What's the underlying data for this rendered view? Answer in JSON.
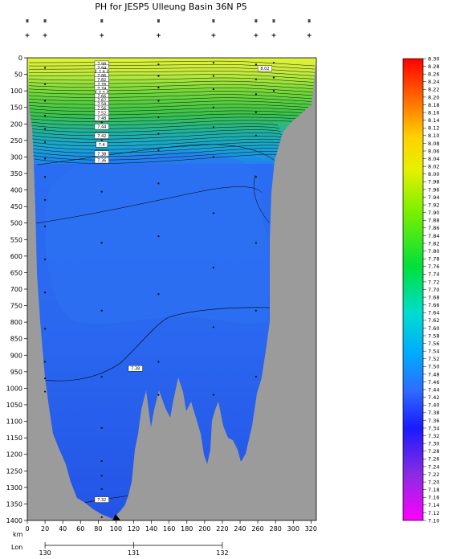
{
  "chart_data": {
    "type": "heatmap",
    "title": "PH for JESP5 Ulleung Basin 36N P5",
    "x_axis": {
      "label": "km",
      "ticks": [
        0,
        20,
        40,
        60,
        80,
        100,
        120,
        140,
        160,
        180,
        200,
        220,
        240,
        260,
        280,
        300,
        320
      ],
      "range": [
        0,
        326
      ]
    },
    "y_axis": {
      "ticks": [
        0,
        50,
        100,
        150,
        200,
        250,
        300,
        350,
        400,
        450,
        500,
        550,
        600,
        650,
        700,
        750,
        800,
        850,
        900,
        950,
        1000,
        1050,
        1100,
        1150,
        1200,
        1250,
        1300,
        1350,
        1400
      ],
      "range": [
        0,
        1400
      ],
      "inverted": true
    },
    "lon_axis": {
      "label": "Lon",
      "ticks": [
        {
          "lon": "130",
          "km": 20
        },
        {
          "lon": "131",
          "km": 120
        },
        {
          "lon": "132",
          "km": 220
        }
      ]
    },
    "colorbar": {
      "ticks": [
        "8.30",
        "8.28",
        "8.26",
        "8.24",
        "8.22",
        "8.20",
        "8.18",
        "8.16",
        "8.14",
        "8.12",
        "8.10",
        "8.08",
        "8.06",
        "8.04",
        "8.02",
        "8.00",
        "7.98",
        "7.96",
        "7.94",
        "7.92",
        "7.90",
        "7.88",
        "7.86",
        "7.84",
        "7.82",
        "7.80",
        "7.78",
        "7.76",
        "7.74",
        "7.72",
        "7.70",
        "7.68",
        "7.66",
        "7.64",
        "7.62",
        "7.60",
        "7.58",
        "7.56",
        "7.54",
        "7.52",
        "7.50",
        "7.48",
        "7.46",
        "7.44",
        "7.42",
        "7.40",
        "7.38",
        "7.36",
        "7.34",
        "7.32",
        "7.30",
        "7.28",
        "7.26",
        "7.24",
        "7.22",
        "7.20",
        "7.18",
        "7.16",
        "7.14",
        "7.12",
        "7.10"
      ],
      "range": [
        7.1,
        8.3
      ]
    },
    "station_km": [
      0,
      20,
      84,
      148,
      210,
      258,
      278,
      318
    ],
    "samples": [
      {
        "km": 20,
        "depths": [
          30,
          80,
          130,
          175,
          215,
          255,
          305,
          360,
          430,
          510,
          610,
          710,
          820,
          920,
          970,
          1010
        ]
      },
      {
        "km": 84,
        "depths": [
          20,
          60,
          100,
          140,
          195,
          250,
          310,
          405,
          560,
          765,
          965,
          1120,
          1220,
          1265,
          1305,
          1340,
          1390
        ]
      },
      {
        "km": 148,
        "depths": [
          20,
          55,
          90,
          130,
          180,
          230,
          280,
          380,
          540,
          715,
          920,
          1020
        ]
      },
      {
        "km": 210,
        "depths": [
          15,
          55,
          95,
          150,
          210,
          300,
          470,
          635,
          815,
          1020
        ]
      },
      {
        "km": 258,
        "depths": [
          20,
          65,
          110,
          165,
          235,
          360,
          560,
          765,
          965
        ]
      },
      {
        "km": 278,
        "depths": [
          15,
          60,
          100
        ]
      }
    ],
    "contour_labels": [
      {
        "text": "7.98",
        "km": 84,
        "depth": 18
      },
      {
        "text": "7.94",
        "km": 84,
        "depth": 30
      },
      {
        "text": "7.9",
        "km": 84,
        "depth": 42
      },
      {
        "text": "7.86",
        "km": 84,
        "depth": 54
      },
      {
        "text": "7.82",
        "km": 84,
        "depth": 66
      },
      {
        "text": "7.78",
        "km": 84,
        "depth": 80
      },
      {
        "text": "7.74",
        "km": 84,
        "depth": 92
      },
      {
        "text": "7.7",
        "km": 84,
        "depth": 104
      },
      {
        "text": "7.66",
        "km": 84,
        "depth": 116
      },
      {
        "text": "7.62",
        "km": 84,
        "depth": 128
      },
      {
        "text": "7.58",
        "km": 84,
        "depth": 140
      },
      {
        "text": "7.56",
        "km": 84,
        "depth": 152
      },
      {
        "text": "7.52",
        "km": 84,
        "depth": 166
      },
      {
        "text": "7.48",
        "km": 84,
        "depth": 182
      },
      {
        "text": "7.44",
        "km": 84,
        "depth": 208
      },
      {
        "text": "7.42",
        "km": 84,
        "depth": 236
      },
      {
        "text": "7.4",
        "km": 84,
        "depth": 262
      },
      {
        "text": "7.38",
        "km": 84,
        "depth": 290
      },
      {
        "text": "7.36",
        "km": 84,
        "depth": 310
      },
      {
        "text": "8.02",
        "km": 268,
        "depth": 32
      },
      {
        "text": "7.38",
        "km": 122,
        "depth": 940
      },
      {
        "text": "7.32",
        "km": 84,
        "depth": 1337
      }
    ]
  }
}
